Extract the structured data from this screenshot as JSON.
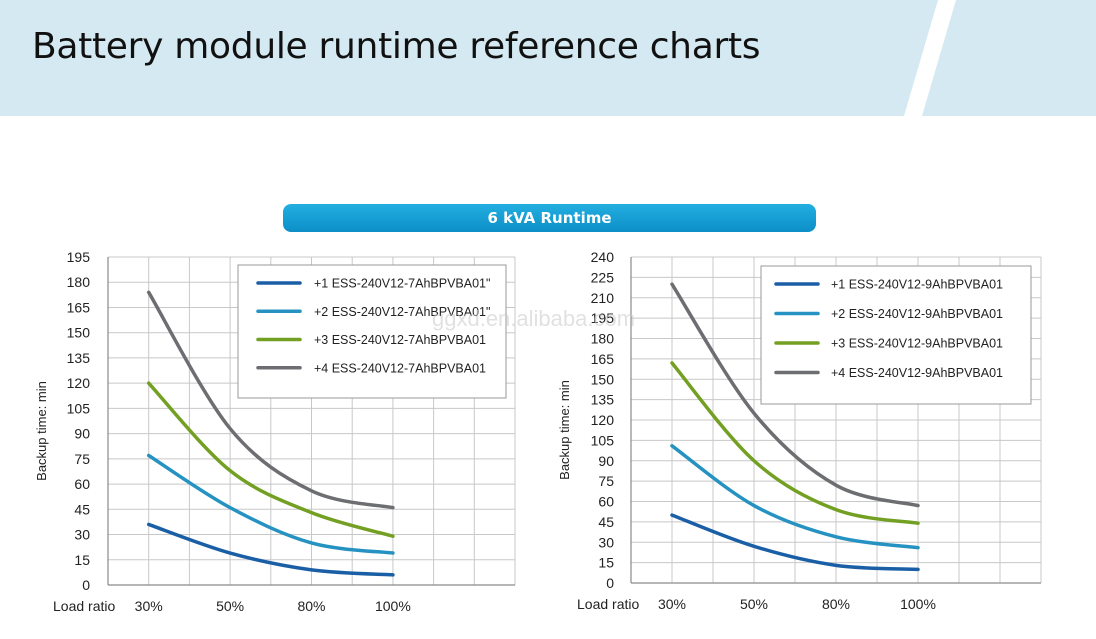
{
  "header": {
    "title": "Battery module runtime reference charts",
    "subtitle_pill": "6 kVA Runtime",
    "watermark": "ggxd.en.alibaba.com"
  },
  "chart_data": [
    {
      "type": "line",
      "title": "6 kVA Runtime",
      "xlabel": "Load ratio",
      "ylabel": "Backup time: min",
      "categories": [
        "30%",
        "50%",
        "80%",
        "100%"
      ],
      "ylim": [
        0,
        195
      ],
      "ytick_step": 15,
      "grid": true,
      "legend_position": "top-right",
      "series": [
        {
          "name": "+1 ESS-240V12-7AhBPVBA01\"",
          "color": "#1a5fa6",
          "values": [
            36,
            19,
            9,
            6
          ]
        },
        {
          "name": "+2 ESS-240V12-7AhBPVBA01\"",
          "color": "#2592c2",
          "values": [
            77,
            46,
            25,
            19
          ]
        },
        {
          "name": "+3 ESS-240V12-7AhBPVBA01",
          "color": "#73a023",
          "values": [
            120,
            68,
            43,
            29
          ]
        },
        {
          "name": "+4 ESS-240V12-7AhBPVBA01",
          "color": "#6d6e71",
          "values": [
            174,
            93,
            56,
            46
          ]
        }
      ]
    },
    {
      "type": "line",
      "title": "6 kVA Runtime",
      "xlabel": "Load ratio",
      "ylabel": "Backup time: min",
      "categories": [
        "30%",
        "50%",
        "80%",
        "100%"
      ],
      "ylim": [
        0,
        240
      ],
      "ytick_step": 15,
      "grid": true,
      "legend_position": "top-right",
      "series": [
        {
          "name": "+1 ESS-240V12-9AhBPVBA01",
          "color": "#1a5fa6",
          "values": [
            50,
            27,
            13,
            10
          ]
        },
        {
          "name": "+2 ESS-240V12-9AhBPVBA01",
          "color": "#2592c2",
          "values": [
            101,
            57,
            34,
            26
          ]
        },
        {
          "name": "+3 ESS-240V12-9AhBPVBA01",
          "color": "#73a023",
          "values": [
            162,
            90,
            54,
            44
          ]
        },
        {
          "name": "+4 ESS-240V12-9AhBPVBA01",
          "color": "#6d6e71",
          "values": [
            220,
            125,
            72,
            57
          ]
        }
      ]
    }
  ]
}
